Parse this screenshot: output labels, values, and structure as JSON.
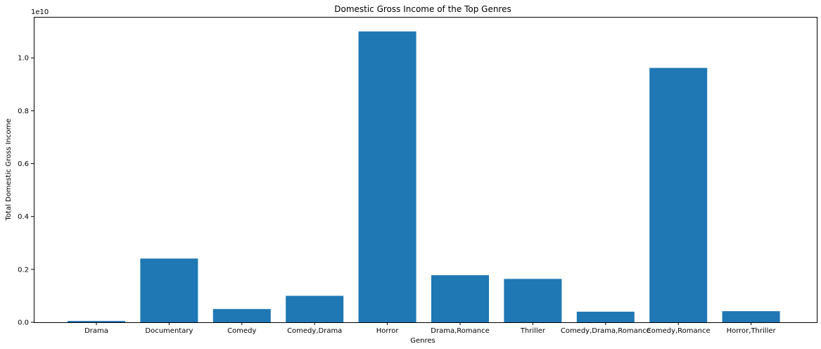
{
  "chart_data": {
    "type": "bar",
    "title": "Domestic Gross Income of the Top Genres",
    "xlabel": "Genres",
    "ylabel": "Total Domestic Gross Income",
    "offset_label": "1e10",
    "categories": [
      "Drama",
      "Documentary",
      "Comedy",
      "Comedy,Drama",
      "Horror",
      "Drama,Romance",
      "Thriller",
      "Comedy,Drama,Romance",
      "Comedy,Romance",
      "Horror,Thriller"
    ],
    "values": [
      0.005,
      0.241,
      0.05,
      0.1,
      1.1,
      0.178,
      0.164,
      0.04,
      0.962,
      0.042
    ],
    "ylim": [
      0,
      1.155
    ],
    "yticks": [
      0.0,
      0.2,
      0.4,
      0.6,
      0.8,
      1.0
    ],
    "ytick_labels": [
      "0.0",
      "0.2",
      "0.4",
      "0.6",
      "0.8",
      "1.0"
    ],
    "grid": false,
    "bar_color": "#1f77b4"
  }
}
